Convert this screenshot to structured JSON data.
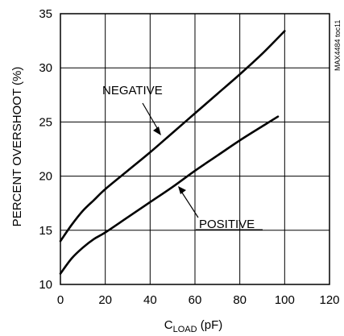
{
  "chart_data": {
    "type": "line",
    "xlabel": "C",
    "xlabel_sub": "LOAD",
    "xlabel_unit": " (pF)",
    "ylabel": "PERCENT OVERSHOOT (%)",
    "xlim": [
      0,
      120
    ],
    "ylim": [
      10,
      35
    ],
    "xticks": [
      0,
      20,
      40,
      60,
      80,
      100,
      120
    ],
    "yticks": [
      10,
      15,
      20,
      25,
      30,
      35
    ],
    "grid": true,
    "side_id": "MAX4484 toc11",
    "series": [
      {
        "name": "NEGATIVE",
        "x": [
          0,
          5,
          10,
          15,
          20,
          30,
          40,
          50,
          60,
          70,
          80,
          90,
          100
        ],
        "y": [
          14.0,
          15.5,
          16.8,
          17.8,
          18.8,
          20.5,
          22.2,
          24.0,
          25.8,
          27.6,
          29.4,
          31.3,
          33.4
        ]
      },
      {
        "name": "POSITIVE",
        "x": [
          0,
          5,
          10,
          15,
          20,
          30,
          40,
          50,
          60,
          70,
          80,
          90,
          97
        ],
        "y": [
          11.0,
          12.4,
          13.4,
          14.2,
          14.8,
          16.2,
          17.6,
          19.0,
          20.5,
          21.9,
          23.3,
          24.6,
          25.5
        ]
      }
    ],
    "series_labels": {
      "negative": "NEGATIVE",
      "positive": "POSITIVE"
    }
  }
}
